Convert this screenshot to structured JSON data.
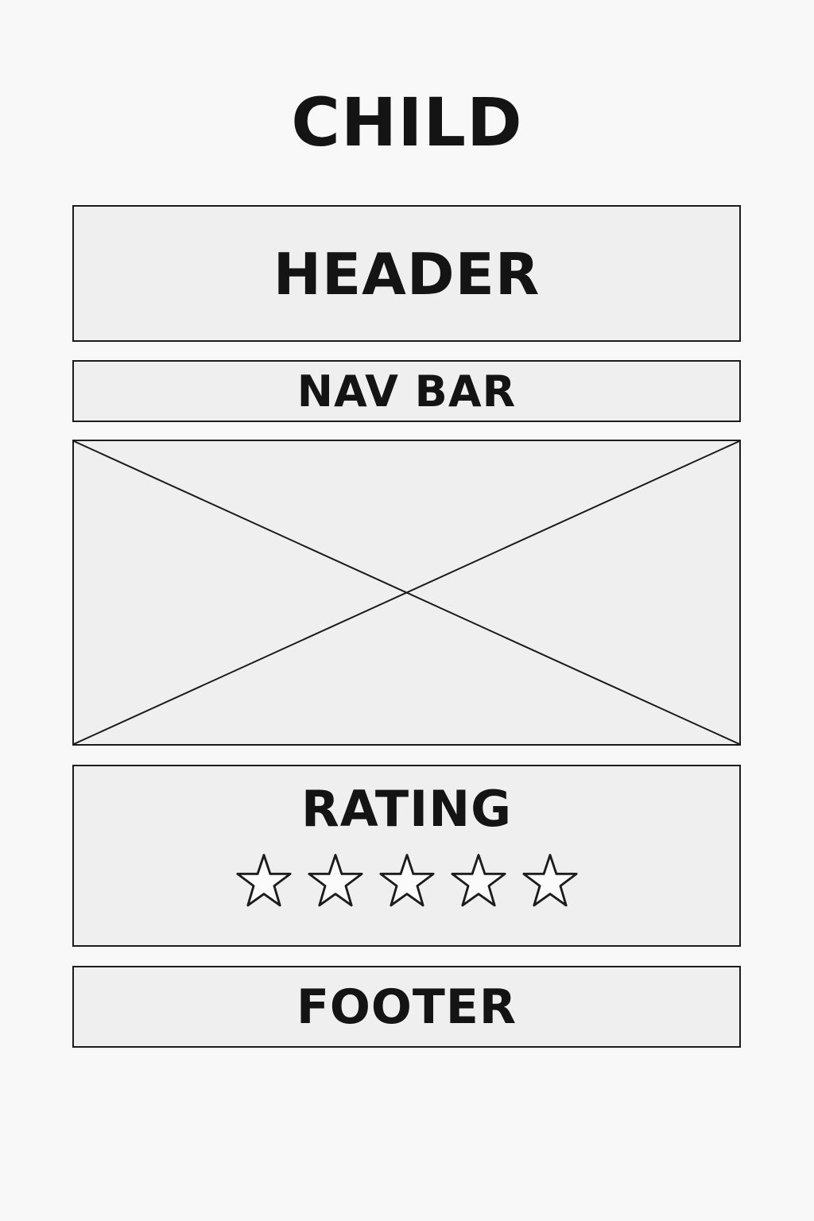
{
  "title": "CHILD",
  "header": {
    "label": "HEADER"
  },
  "nav": {
    "label": "NAV BAR"
  },
  "image_placeholder": {
    "icon": "crossed-box-image-placeholder"
  },
  "rating": {
    "label": "RATING",
    "stars_total": 5,
    "stars_filled": 0
  },
  "footer": {
    "label": "FOOTER"
  }
}
